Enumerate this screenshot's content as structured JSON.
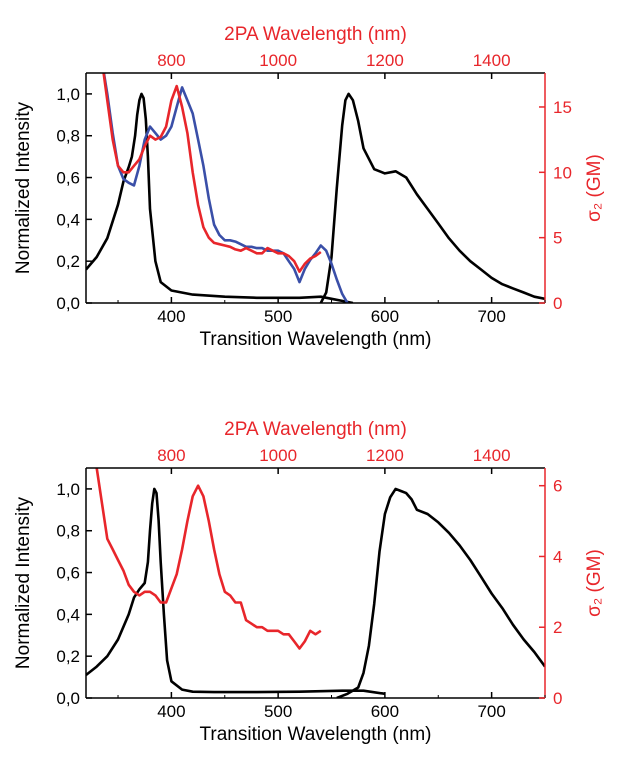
{
  "chart_data": [
    {
      "type": "line",
      "xlabel": "Transition Wavelength (nm)",
      "x_ticks": [
        "400",
        "500",
        "600",
        "700"
      ],
      "xlim": [
        320,
        750
      ],
      "top_xlabel": "2PA Wavelength (nm)",
      "top_ticks": [
        "800",
        "1000",
        "1200",
        "1400"
      ],
      "top_xlim": [
        640,
        1500
      ],
      "ylabel": "Normalized Intensity",
      "y_ticks": [
        "0,0",
        "0,2",
        "0,4",
        "0,6",
        "0,8",
        "1,0"
      ],
      "ylim": [
        0,
        1.1
      ],
      "y2label": "σ₂ (GM)",
      "y2_ticks": [
        "0",
        "5",
        "10",
        "15"
      ],
      "y2lim": [
        0,
        17.6
      ],
      "series": [
        {
          "axis": "left-bottom",
          "color": "#000000",
          "x": [
            320,
            330,
            340,
            350,
            355,
            360,
            363,
            366,
            368,
            370,
            372,
            374,
            376,
            378,
            380,
            385,
            390,
            400,
            420,
            450,
            480,
            500,
            520,
            540,
            550,
            560,
            570
          ],
          "y": [
            0.16,
            0.22,
            0.31,
            0.47,
            0.58,
            0.65,
            0.7,
            0.8,
            0.9,
            0.97,
            1.0,
            0.98,
            0.88,
            0.7,
            0.45,
            0.2,
            0.1,
            0.06,
            0.04,
            0.03,
            0.025,
            0.025,
            0.025,
            0.03,
            0.02,
            0.01,
            0.0
          ]
        },
        {
          "axis": "left-bottom",
          "color": "#000000",
          "x": [
            540,
            545,
            550,
            555,
            560,
            563,
            566,
            570,
            575,
            580,
            590,
            600,
            610,
            620,
            630,
            640,
            650,
            660,
            670,
            680,
            690,
            700,
            710,
            720,
            730,
            740,
            750
          ],
          "y": [
            0.0,
            0.05,
            0.22,
            0.55,
            0.85,
            0.97,
            1.0,
            0.97,
            0.87,
            0.74,
            0.64,
            0.62,
            0.63,
            0.6,
            0.52,
            0.45,
            0.38,
            0.31,
            0.25,
            0.2,
            0.16,
            0.12,
            0.09,
            0.07,
            0.05,
            0.03,
            0.02
          ]
        },
        {
          "axis": "right-top",
          "color": "#3a4fa8",
          "x": [
            670,
            680,
            690,
            700,
            710,
            720,
            730,
            740,
            750,
            760,
            770,
            780,
            790,
            800,
            810,
            820,
            830,
            840,
            850,
            860,
            870,
            880,
            890,
            900,
            910,
            920,
            930,
            940,
            950,
            960,
            970,
            980,
            990,
            1000,
            1010,
            1020,
            1030,
            1040,
            1050,
            1060,
            1070,
            1080,
            1090,
            1100,
            1110,
            1120,
            1130
          ],
          "y": [
            18.5,
            16.0,
            13.0,
            10.5,
            9.5,
            9.2,
            9.0,
            10.5,
            12.5,
            13.5,
            13.0,
            12.5,
            12.8,
            13.5,
            15.0,
            16.5,
            15.5,
            14.5,
            12.5,
            10.5,
            8.0,
            6.0,
            5.2,
            4.8,
            4.8,
            4.7,
            4.5,
            4.3,
            4.3,
            4.2,
            4.2,
            4.0,
            4.0,
            4.0,
            3.8,
            3.2,
            2.6,
            1.6,
            2.6,
            3.3,
            3.8,
            4.4,
            4.0,
            3.0,
            1.8,
            0.7,
            0.0
          ]
        },
        {
          "axis": "right-top",
          "color": "#e8262b",
          "x": [
            670,
            680,
            690,
            700,
            710,
            720,
            730,
            740,
            750,
            760,
            770,
            780,
            790,
            800,
            810,
            820,
            830,
            840,
            850,
            860,
            870,
            880,
            890,
            900,
            910,
            920,
            930,
            940,
            950,
            960,
            970,
            980,
            990,
            1000,
            1010,
            1020,
            1030,
            1040,
            1050,
            1060,
            1070,
            1080
          ],
          "y": [
            18.5,
            15.5,
            12.5,
            10.5,
            10.0,
            10.0,
            10.5,
            11.0,
            12.0,
            12.8,
            12.5,
            12.7,
            13.5,
            15.5,
            16.6,
            15.0,
            13.0,
            10.0,
            7.5,
            5.8,
            5.0,
            4.6,
            4.5,
            4.4,
            4.3,
            4.1,
            4.0,
            4.2,
            4.0,
            3.8,
            3.8,
            4.2,
            4.0,
            3.8,
            3.8,
            3.6,
            3.2,
            2.4,
            3.0,
            3.4,
            3.6,
            3.9
          ]
        }
      ]
    },
    {
      "type": "line",
      "xlabel": "Transition Wavelength (nm)",
      "x_ticks": [
        "400",
        "500",
        "600",
        "700"
      ],
      "xlim": [
        320,
        750
      ],
      "top_xlabel": "2PA Wavelength (nm)",
      "top_ticks": [
        "800",
        "1000",
        "1200",
        "1400"
      ],
      "top_xlim": [
        640,
        1500
      ],
      "ylabel": "Normalized Intensity",
      "y_ticks": [
        "0,0",
        "0,2",
        "0,4",
        "0,6",
        "0,8",
        "1,0"
      ],
      "ylim": [
        0,
        1.1
      ],
      "y2label": "σ₂ (GM)",
      "y2_ticks": [
        "0",
        "2",
        "4",
        "6"
      ],
      "y2lim": [
        0,
        6.5
      ],
      "series": [
        {
          "axis": "left-bottom",
          "color": "#000000",
          "x": [
            320,
            330,
            340,
            350,
            360,
            365,
            370,
            375,
            378,
            380,
            382,
            384,
            386,
            388,
            390,
            393,
            396,
            400,
            410,
            420,
            440,
            480,
            520,
            560,
            580,
            600
          ],
          "y": [
            0.11,
            0.15,
            0.2,
            0.28,
            0.4,
            0.48,
            0.52,
            0.55,
            0.65,
            0.8,
            0.93,
            1.0,
            0.98,
            0.85,
            0.65,
            0.4,
            0.18,
            0.08,
            0.04,
            0.03,
            0.028,
            0.028,
            0.03,
            0.035,
            0.035,
            0.02
          ]
        },
        {
          "axis": "left-bottom",
          "color": "#000000",
          "x": [
            555,
            565,
            575,
            580,
            585,
            590,
            595,
            600,
            605,
            610,
            615,
            620,
            625,
            630,
            640,
            650,
            660,
            670,
            680,
            690,
            700,
            710,
            720,
            730,
            740,
            750
          ],
          "y": [
            0.0,
            0.02,
            0.05,
            0.12,
            0.25,
            0.45,
            0.7,
            0.88,
            0.96,
            1.0,
            0.99,
            0.98,
            0.95,
            0.9,
            0.88,
            0.84,
            0.79,
            0.73,
            0.66,
            0.58,
            0.5,
            0.43,
            0.35,
            0.28,
            0.22,
            0.15
          ]
        },
        {
          "axis": "right-top",
          "color": "#e8262b",
          "x": [
            650,
            660,
            670,
            680,
            690,
            700,
            710,
            720,
            730,
            740,
            750,
            760,
            770,
            780,
            790,
            800,
            810,
            820,
            830,
            840,
            850,
            860,
            870,
            880,
            890,
            900,
            910,
            920,
            930,
            940,
            950,
            960,
            970,
            980,
            990,
            1000,
            1010,
            1020,
            1030,
            1040,
            1050,
            1060,
            1070,
            1080
          ],
          "y": [
            7.5,
            6.5,
            5.5,
            4.5,
            4.2,
            3.9,
            3.6,
            3.2,
            3.0,
            2.9,
            3.0,
            3.0,
            2.9,
            2.7,
            2.7,
            3.1,
            3.5,
            4.2,
            5.0,
            5.7,
            6.0,
            5.7,
            5.0,
            4.2,
            3.5,
            3.0,
            2.9,
            2.7,
            2.7,
            2.2,
            2.1,
            2.0,
            2.0,
            1.9,
            1.9,
            1.9,
            1.8,
            1.8,
            1.6,
            1.4,
            1.6,
            1.9,
            1.8,
            1.9
          ]
        }
      ]
    }
  ]
}
